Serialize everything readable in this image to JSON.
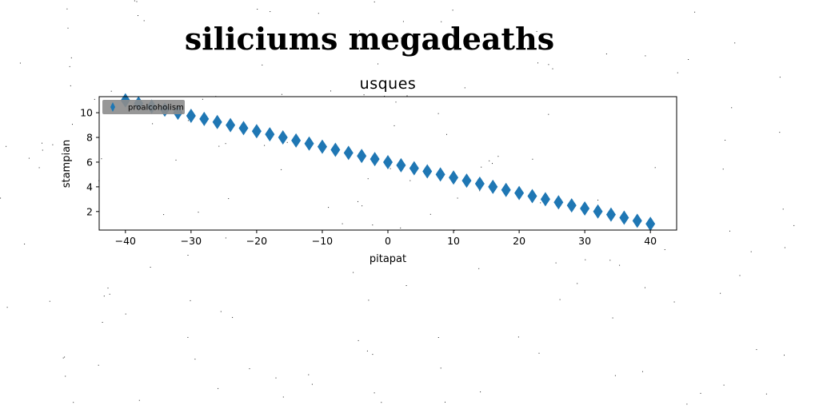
{
  "chart_data": {
    "type": "scatter",
    "title": "siliciums megadeaths",
    "subtitle": "usques",
    "xlabel": "pitapat",
    "ylabel": "stampian",
    "xlim": [
      -44,
      44
    ],
    "ylim": [
      0.5,
      11.3
    ],
    "xticks": [
      -40,
      -30,
      -20,
      -10,
      0,
      10,
      20,
      30,
      40
    ],
    "yticks": [
      2,
      4,
      6,
      8,
      10
    ],
    "grid": false,
    "legend_position": "top-left",
    "marker": "thin-diamond",
    "color": "#1f77b4",
    "series": [
      {
        "name": "proalcoholism",
        "x": [
          -40,
          -38,
          -36,
          -34,
          -32,
          -30,
          -28,
          -26,
          -24,
          -22,
          -20,
          -18,
          -16,
          -14,
          -12,
          -10,
          -8,
          -6,
          -4,
          -2,
          0,
          2,
          4,
          6,
          8,
          10,
          12,
          14,
          16,
          18,
          20,
          22,
          24,
          26,
          28,
          30,
          32,
          34,
          36,
          38,
          40
        ],
        "y": [
          11.0,
          10.75,
          10.5,
          10.25,
          10.0,
          9.75,
          9.5,
          9.25,
          9.0,
          8.75,
          8.5,
          8.25,
          8.0,
          7.75,
          7.5,
          7.25,
          7.0,
          6.75,
          6.5,
          6.25,
          6.0,
          5.75,
          5.5,
          5.25,
          5.0,
          4.75,
          4.5,
          4.25,
          4.0,
          3.75,
          3.5,
          3.25,
          3.0,
          2.75,
          2.5,
          2.25,
          2.0,
          1.75,
          1.5,
          1.25,
          1.0
        ]
      }
    ]
  }
}
